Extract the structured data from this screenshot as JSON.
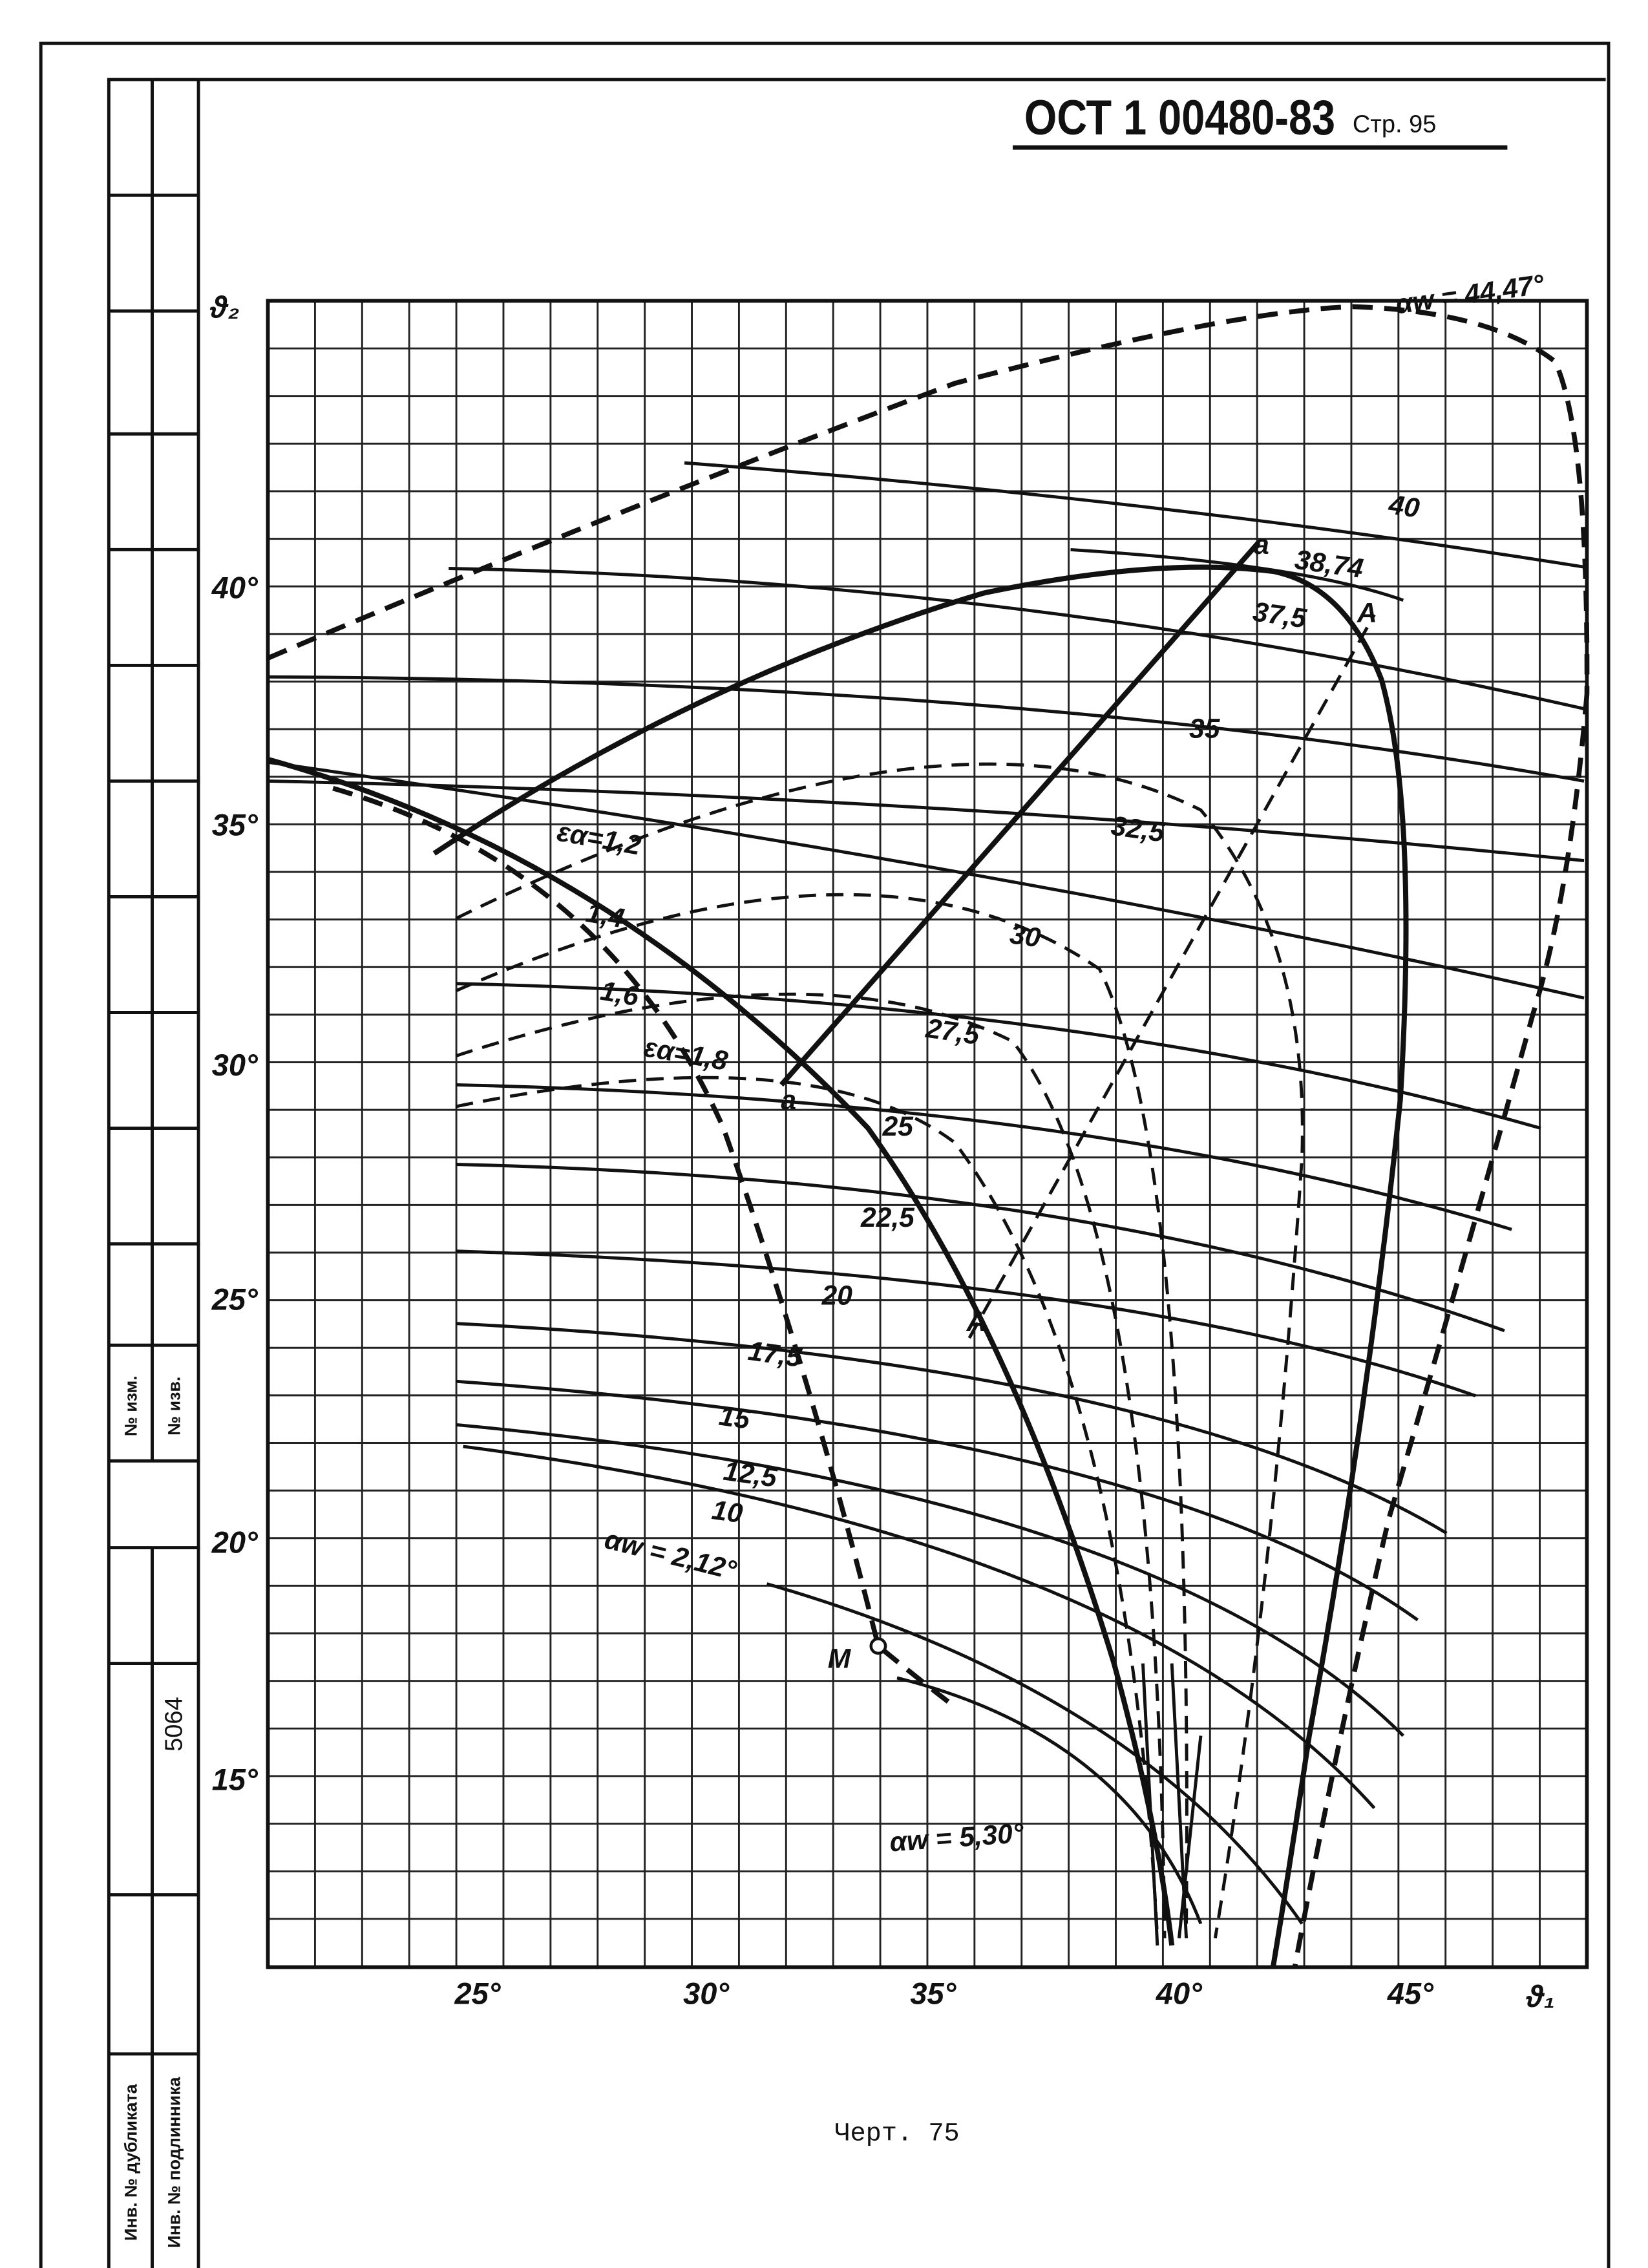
{
  "header": {
    "code": "ОСТ 1 00480-83",
    "page": "Стр. 95"
  },
  "chart": {
    "y_axis_label": "ϑ₂",
    "x_axis_label": "ϑ₁",
    "y_tick_labels": [
      "40°",
      "35°",
      "30°",
      "25°",
      "20°",
      "15°"
    ],
    "x_tick_labels": [
      "25°",
      "30°",
      "35°",
      "40°",
      "45°"
    ],
    "curve_labels": [
      "αw = 44,47°",
      "40",
      "38,74",
      "37,5",
      "35",
      "32,5",
      "30",
      "27,5",
      "25",
      "22,5",
      "20",
      "17,5",
      "15",
      "12,5",
      "10",
      "αw = 2,12°",
      "αw = 5,30°"
    ],
    "epsilon_labels": [
      "εα=1,2",
      "1,4",
      "1,6",
      "εα=1,8"
    ],
    "point_labels": [
      "a",
      "a",
      "A",
      "A",
      "M"
    ]
  },
  "caption": "Черт. 75",
  "stamp": {
    "change_no": "№ изм.",
    "notice_no": "№ изв.",
    "number": "5064",
    "duplicate_inv": "Инв. № дубликата",
    "original_inv": "Инв. № подлинника"
  }
}
